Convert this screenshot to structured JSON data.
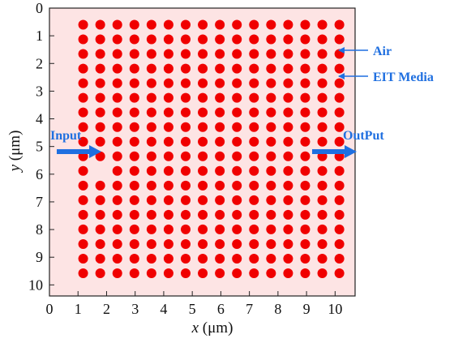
{
  "figure": {
    "x_axis": {
      "label_var": "x",
      "label_unit": " (μm)",
      "ticks": [
        "0",
        "1",
        "2",
        "3",
        "4",
        "5",
        "6",
        "7",
        "8",
        "9",
        "10"
      ],
      "range": [
        0,
        10.7
      ]
    },
    "y_axis": {
      "label_var": "y",
      "label_unit": " (μm)",
      "ticks": [
        "0",
        "1",
        "2",
        "3",
        "4",
        "5",
        "6",
        "7",
        "8",
        "9",
        "10"
      ],
      "range": [
        0,
        10.4
      ],
      "inverted": true
    },
    "background_color": "#fde4e4",
    "rod_color": "#f00000",
    "annotation_color": "#1f6fe0",
    "rod_lattice": {
      "columns": 16,
      "rows": 18,
      "x_start": 1.18,
      "x_end": 10.15,
      "y_start": 0.6,
      "y_end": 9.58,
      "missing_rods": [
        {
          "column": 1,
          "row": 10
        }
      ]
    },
    "annotations": {
      "air": "Air",
      "eit_media": "EIT Media",
      "input": "Input",
      "output": "OutPut"
    }
  }
}
